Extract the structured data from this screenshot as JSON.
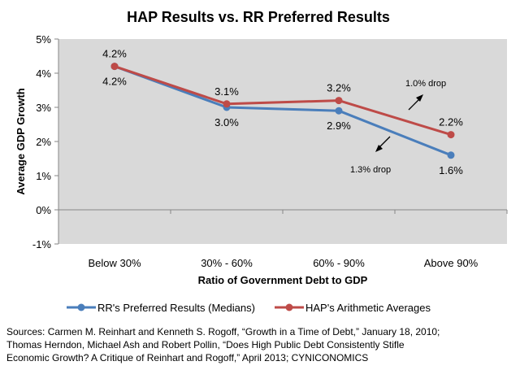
{
  "chart_data": {
    "type": "line",
    "title": "HAP Results vs. RR Preferred Results",
    "xlabel": "Ratio of Government Debt to GDP",
    "ylabel": "Average GDP Growth",
    "categories": [
      "Below 30%",
      "30% - 60%",
      "60% - 90%",
      "Above 90%"
    ],
    "ylim": [
      -1,
      5
    ],
    "yticks": [
      "-1%",
      "0%",
      "1%",
      "2%",
      "3%",
      "4%",
      "5%"
    ],
    "grid": false,
    "legend": "bottom",
    "series": [
      {
        "name": "RR's Preferred Results (Medians)",
        "color": "#4a7ebb",
        "values": [
          4.2,
          3.0,
          2.9,
          1.6
        ],
        "labels": [
          "4.2%",
          "3.0%",
          "2.9%",
          "1.6%"
        ],
        "label_position": "below"
      },
      {
        "name": "HAP's Arithmetic Averages",
        "color": "#be4b48",
        "values": [
          4.2,
          3.1,
          3.2,
          2.2
        ],
        "labels": [
          "4.2%",
          "3.1%",
          "3.2%",
          "2.2%"
        ],
        "label_position": "above"
      }
    ],
    "annotations": [
      "1.0% drop",
      "1.3% drop"
    ],
    "plot_background": "#d9d9d9"
  },
  "sources": [
    "Sources:  Carmen M. Reinhart and Kenneth S. Rogoff, “Growth in a Time of Debt,” January 18, 2010;",
    "Thomas Herndon, Michael Ash and Robert Pollin, “Does High Public Debt Consistently Stifle",
    "Economic Growth? A Critique of Reinhart and Rogoff,” April 2013; CYNICONOMICS"
  ]
}
